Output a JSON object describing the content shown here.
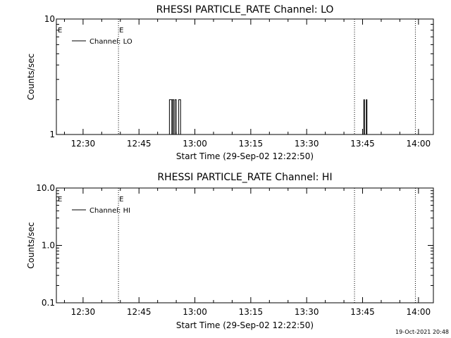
{
  "timestamp": "19-Oct-2021 20:48",
  "chart_data": [
    {
      "type": "line",
      "title": "RHESSI PARTICLE_RATE Channel: LO",
      "xlabel": "Start Time (29-Sep-02 12:22:50)",
      "ylabel": "Counts/sec",
      "yscale": "log",
      "ylim": [
        1,
        10
      ],
      "ytick_labels": [
        "1",
        "10"
      ],
      "xlim": [
        "12:22:50",
        "14:04:00"
      ],
      "xtick_labels": [
        "12:30",
        "12:45",
        "13:00",
        "13:15",
        "13:30",
        "13:45",
        "14:00"
      ],
      "grid": false,
      "legend": {
        "position": "top-left",
        "entries": [
          "Channel: LO"
        ]
      },
      "event_lines": [
        {
          "time": "12:39:30",
          "label": "E"
        },
        {
          "time": "13:42:50",
          "label": ""
        },
        {
          "time": "13:59:10",
          "label": ""
        }
      ],
      "edge_marker": {
        "time": "12:22:50",
        "label": "E"
      },
      "series": [
        {
          "name": "Channel: LO",
          "x": [
            "12:22:50",
            "12:52:50",
            "12:53:10",
            "12:53:40",
            "12:53:50",
            "12:54:00",
            "12:54:20",
            "12:54:30",
            "12:54:40",
            "12:55:00",
            "12:55:10",
            "12:55:30",
            "12:55:40",
            "12:56:10",
            "12:56:20",
            "12:56:30",
            "13:45:10",
            "13:45:20",
            "13:45:30",
            "13:45:40",
            "13:46:00",
            "13:46:10",
            "13:46:20",
            "14:04:00"
          ],
          "y": [
            1,
            1,
            2,
            2,
            1,
            2,
            1,
            1,
            2,
            1,
            1,
            1,
            2,
            1,
            1,
            1,
            1,
            2,
            1,
            1,
            2,
            1,
            1,
            1
          ]
        }
      ]
    },
    {
      "type": "line",
      "title": "RHESSI PARTICLE_RATE Channel: HI",
      "xlabel": "Start Time (29-Sep-02 12:22:50)",
      "ylabel": "Counts/sec",
      "yscale": "log",
      "ylim": [
        0.1,
        10
      ],
      "ytick_labels": [
        "0.1",
        "1.0",
        "10.0"
      ],
      "xlim": [
        "12:22:50",
        "14:04:00"
      ],
      "xtick_labels": [
        "12:30",
        "12:45",
        "13:00",
        "13:15",
        "13:30",
        "13:45",
        "14:00"
      ],
      "grid": false,
      "legend": {
        "position": "top-left",
        "entries": [
          "Channel: HI"
        ]
      },
      "event_lines": [
        {
          "time": "12:39:30",
          "label": "E"
        },
        {
          "time": "13:42:50",
          "label": ""
        },
        {
          "time": "13:59:10",
          "label": ""
        }
      ],
      "edge_marker": {
        "time": "12:22:50",
        "label": "E"
      },
      "series": [
        {
          "name": "Channel: HI",
          "x": [],
          "y": []
        }
      ]
    }
  ]
}
